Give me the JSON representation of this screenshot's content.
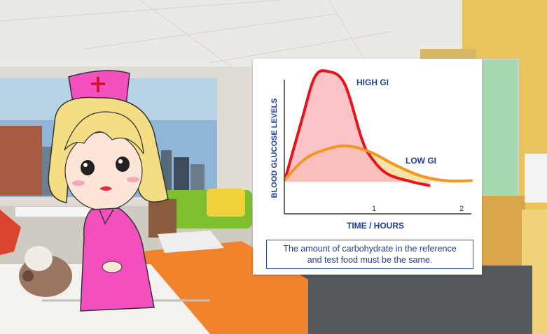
{
  "chart_data": {
    "type": "line",
    "title": "",
    "xlabel": "TIME / HOURS",
    "ylabel": "BLOOD GLUCOSE LEVELS",
    "x_ticks": [
      "1",
      "2"
    ],
    "xlim": [
      0,
      2.2
    ],
    "series": [
      {
        "name": "HIGH GI",
        "color": "#e8141c",
        "fill": "#f9b9bd",
        "x": [
          0.0,
          0.2,
          0.35,
          0.5,
          0.7,
          0.9,
          1.0,
          1.2,
          1.5,
          1.7
        ],
        "y": [
          0.1,
          0.6,
          0.95,
          1.0,
          0.9,
          0.45,
          0.3,
          0.15,
          0.08,
          0.05
        ]
      },
      {
        "name": "LOW GI",
        "color": "#f6961f",
        "fill": "#fbe3a8",
        "x": [
          0.0,
          0.2,
          0.4,
          0.7,
          1.0,
          1.3,
          1.6,
          1.9,
          2.2
        ],
        "y": [
          0.1,
          0.25,
          0.33,
          0.38,
          0.33,
          0.22,
          0.13,
          0.09,
          0.09
        ]
      }
    ]
  },
  "caption": {
    "line1": "The amount of carbohydrate in the reference",
    "line2": "and test food must be the same."
  }
}
